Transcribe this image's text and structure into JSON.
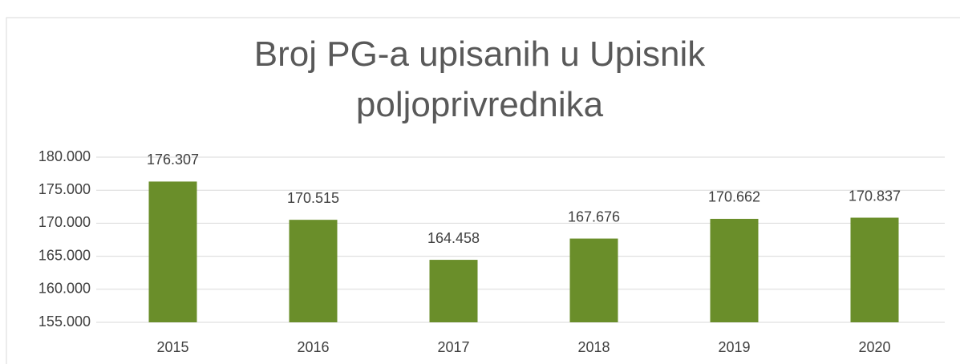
{
  "chart_data": {
    "type": "bar",
    "title": "Broj PG-a upisanih u Upisnik poljoprivrednika",
    "categories": [
      "2015",
      "2016",
      "2017",
      "2018",
      "2019",
      "2020"
    ],
    "values": [
      176307,
      170515,
      164458,
      167676,
      170662,
      170837
    ],
    "value_labels": [
      "176.307",
      "170.515",
      "164.458",
      "167.676",
      "170.662",
      "170.837"
    ],
    "color": "#6a8e2a",
    "ylim": [
      155000,
      180000
    ],
    "yticks": [
      {
        "value": 155000,
        "label": "155.000"
      },
      {
        "value": 160000,
        "label": "160.000"
      },
      {
        "value": 165000,
        "label": "165.000"
      },
      {
        "value": 170000,
        "label": "170.000"
      },
      {
        "value": 175000,
        "label": "175.000"
      },
      {
        "value": 180000,
        "label": "180.000"
      }
    ],
    "grid": true
  }
}
